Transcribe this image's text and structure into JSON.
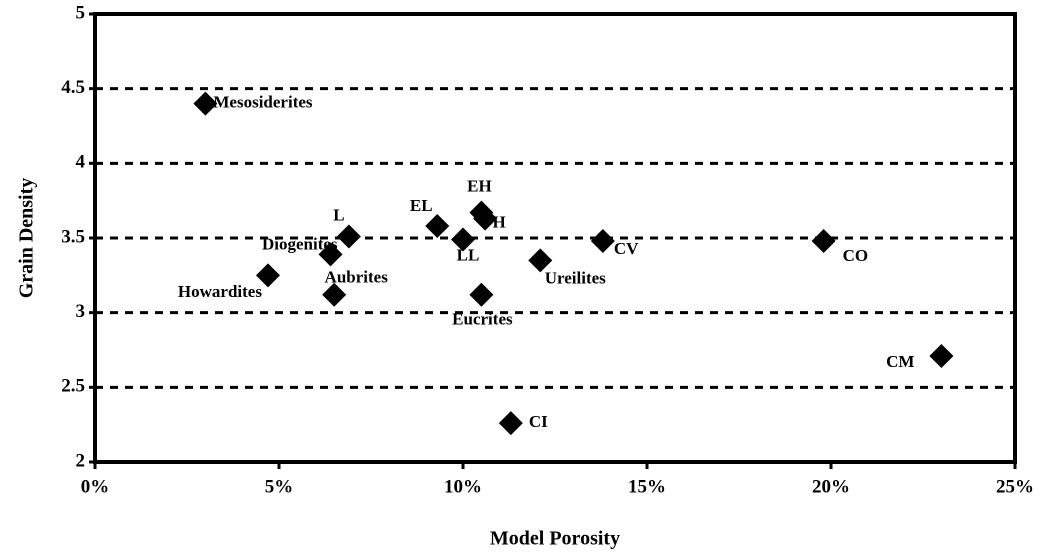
{
  "chart_data": {
    "type": "scatter",
    "x_label": "Model Porosity",
    "y_label": "Grain Density",
    "point_labels": [
      "Mesosiderites",
      "Howardites",
      "Diogenites",
      "L",
      "Aubrites",
      "EL",
      "LL",
      "EH",
      "H",
      "Eucrites",
      "Ureilites",
      "CV",
      "CO",
      "CM",
      "CI"
    ],
    "x": [
      3.0,
      4.7,
      6.4,
      6.9,
      6.5,
      9.3,
      10.0,
      10.5,
      10.6,
      10.5,
      12.1,
      13.8,
      19.8,
      23.0,
      11.3
    ],
    "series": [
      {
        "color": "#000000",
        "values": [
          4.4,
          3.25,
          3.39,
          3.51,
          3.12,
          3.58,
          3.49,
          3.67,
          3.63,
          3.12,
          3.35,
          3.48,
          3.48,
          2.71,
          2.26
        ]
      }
    ],
    "xlim": [
      0,
      25
    ],
    "xticks": [
      {
        "value": 0,
        "label": "0%"
      },
      {
        "value": 5,
        "label": "5%"
      },
      {
        "value": 10,
        "label": "10%"
      },
      {
        "value": 15,
        "label": "15%"
      },
      {
        "value": 20,
        "label": "20%"
      },
      {
        "value": 25,
        "label": "25%"
      }
    ],
    "ylim": [
      2,
      5
    ],
    "yticks": [
      2,
      2.5,
      3,
      3.5,
      4,
      4.5,
      5
    ],
    "grid": true
  }
}
